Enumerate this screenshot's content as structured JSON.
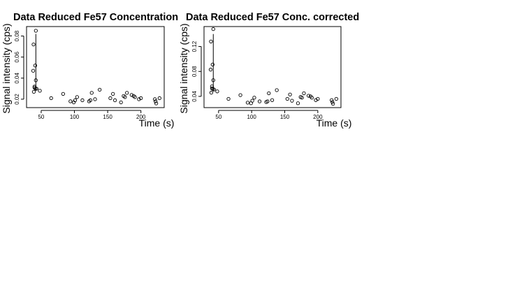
{
  "chart_data": [
    {
      "type": "scatter",
      "title": "Data Reduced Fe57 Concentration",
      "xlabel": "Time (s)",
      "ylabel": "Signal intensity (cps)",
      "xlim": [
        28,
        235
      ],
      "ylim": [
        0.012,
        0.089
      ],
      "xticks": [
        50,
        100,
        150,
        200
      ],
      "xtick_labels": [
        "50",
        "100",
        "150",
        "200"
      ],
      "yticks": [
        0.02,
        0.04,
        0.06,
        0.08
      ],
      "ytick_labels": [
        "0.02",
        "0.04",
        "0.06",
        "0.08"
      ],
      "grid": false,
      "spike_line": {
        "x": 42,
        "y_from": 0.028,
        "y_to": 0.082
      },
      "points": [
        {
          "x": 38,
          "y": 0.047
        },
        {
          "x": 38.5,
          "y": 0.072
        },
        {
          "x": 39,
          "y": 0.027
        },
        {
          "x": 40,
          "y": 0.031
        },
        {
          "x": 40,
          "y": 0.032
        },
        {
          "x": 41,
          "y": 0.052
        },
        {
          "x": 41.5,
          "y": 0.03
        },
        {
          "x": 42,
          "y": 0.085
        },
        {
          "x": 42,
          "y": 0.038
        },
        {
          "x": 43,
          "y": 0.03
        },
        {
          "x": 48,
          "y": 0.028
        },
        {
          "x": 65,
          "y": 0.021
        },
        {
          "x": 83,
          "y": 0.025
        },
        {
          "x": 94,
          "y": 0.018
        },
        {
          "x": 99,
          "y": 0.017
        },
        {
          "x": 101,
          "y": 0.019
        },
        {
          "x": 104,
          "y": 0.022
        },
        {
          "x": 112,
          "y": 0.019
        },
        {
          "x": 122,
          "y": 0.018
        },
        {
          "x": 124,
          "y": 0.019
        },
        {
          "x": 126,
          "y": 0.026
        },
        {
          "x": 131,
          "y": 0.02
        },
        {
          "x": 138,
          "y": 0.029
        },
        {
          "x": 154,
          "y": 0.021
        },
        {
          "x": 158,
          "y": 0.025
        },
        {
          "x": 161,
          "y": 0.019
        },
        {
          "x": 170,
          "y": 0.017
        },
        {
          "x": 174,
          "y": 0.023
        },
        {
          "x": 176,
          "y": 0.022
        },
        {
          "x": 179,
          "y": 0.026
        },
        {
          "x": 186,
          "y": 0.024
        },
        {
          "x": 189,
          "y": 0.023
        },
        {
          "x": 191,
          "y": 0.022
        },
        {
          "x": 197,
          "y": 0.02
        },
        {
          "x": 200,
          "y": 0.021
        },
        {
          "x": 221,
          "y": 0.02
        },
        {
          "x": 222,
          "y": 0.018
        },
        {
          "x": 223,
          "y": 0.016
        },
        {
          "x": 228,
          "y": 0.021
        }
      ]
    },
    {
      "type": "scatter",
      "title": "Data Reduced Fe57 Conc. corrected",
      "xlabel": "Time (s)",
      "ylabel": "Signal intensity (cps)",
      "xlim": [
        28,
        235
      ],
      "ylim": [
        0.022,
        0.152
      ],
      "xticks": [
        50,
        100,
        150,
        200
      ],
      "xtick_labels": [
        "50",
        "100",
        "150",
        "200"
      ],
      "yticks": [
        0.04,
        0.08,
        0.12
      ],
      "ytick_labels": [
        "0.04",
        "0.08",
        "0.12"
      ],
      "grid": false,
      "spike_line": {
        "x": 42,
        "y_from": 0.048,
        "y_to": 0.14
      },
      "points": [
        {
          "x": 38,
          "y": 0.083
        },
        {
          "x": 38.5,
          "y": 0.128
        },
        {
          "x": 39,
          "y": 0.046
        },
        {
          "x": 40,
          "y": 0.053
        },
        {
          "x": 40,
          "y": 0.056
        },
        {
          "x": 41,
          "y": 0.091
        },
        {
          "x": 41.5,
          "y": 0.052
        },
        {
          "x": 42,
          "y": 0.148
        },
        {
          "x": 42,
          "y": 0.066
        },
        {
          "x": 43,
          "y": 0.051
        },
        {
          "x": 48,
          "y": 0.048
        },
        {
          "x": 65,
          "y": 0.036
        },
        {
          "x": 83,
          "y": 0.042
        },
        {
          "x": 94,
          "y": 0.03
        },
        {
          "x": 99,
          "y": 0.029
        },
        {
          "x": 101,
          "y": 0.033
        },
        {
          "x": 104,
          "y": 0.038
        },
        {
          "x": 112,
          "y": 0.032
        },
        {
          "x": 122,
          "y": 0.031
        },
        {
          "x": 124,
          "y": 0.032
        },
        {
          "x": 126,
          "y": 0.045
        },
        {
          "x": 131,
          "y": 0.034
        },
        {
          "x": 138,
          "y": 0.05
        },
        {
          "x": 154,
          "y": 0.036
        },
        {
          "x": 158,
          "y": 0.043
        },
        {
          "x": 161,
          "y": 0.033
        },
        {
          "x": 170,
          "y": 0.029
        },
        {
          "x": 174,
          "y": 0.039
        },
        {
          "x": 176,
          "y": 0.038
        },
        {
          "x": 179,
          "y": 0.045
        },
        {
          "x": 186,
          "y": 0.041
        },
        {
          "x": 189,
          "y": 0.04
        },
        {
          "x": 191,
          "y": 0.038
        },
        {
          "x": 197,
          "y": 0.034
        },
        {
          "x": 200,
          "y": 0.036
        },
        {
          "x": 221,
          "y": 0.034
        },
        {
          "x": 222,
          "y": 0.031
        },
        {
          "x": 223,
          "y": 0.028
        },
        {
          "x": 228,
          "y": 0.036
        }
      ]
    }
  ]
}
